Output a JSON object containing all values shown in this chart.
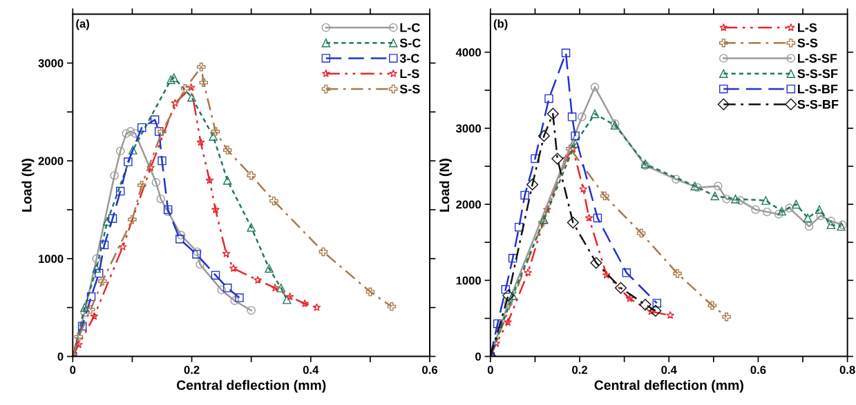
{
  "chart_data": [
    {
      "type": "line",
      "xlabel": "Central deflection (mm)",
      "ylabel": "Load (N)",
      "annotations": [
        "(a)"
      ],
      "xlim": [
        0,
        0.6
      ],
      "ylim": [
        0,
        3500
      ],
      "xticks": [
        0,
        {
          "value": 0.1,
          "label": null
        },
        0.2,
        {
          "value": 0.3,
          "label": null
        },
        0.4,
        {
          "value": 0.5,
          "label": null
        },
        0.6
      ],
      "yticks": [
        0,
        {
          "value": 500,
          "label": null
        },
        1000,
        {
          "value": 1500,
          "label": null
        },
        2000,
        {
          "value": 2500,
          "label": null
        },
        3000
      ],
      "grid": false,
      "legend": "top right",
      "series": [
        {
          "name": "L-C",
          "color": "#9a9a9a",
          "marker": "circle",
          "line_style": "solid",
          "x": [
            0,
            0.02,
            0.04,
            0.07,
            0.08,
            0.09,
            0.097,
            0.105,
            0.14,
            0.148,
            0.16,
            0.182,
            0.209,
            0.214,
            0.25,
            0.272,
            0.3
          ],
          "values": [
            0,
            450,
            1000,
            1850,
            2100,
            2280,
            2300,
            2280,
            1780,
            1610,
            1480,
            1240,
            1070,
            940,
            680,
            570,
            470
          ]
        },
        {
          "name": "S-C",
          "color": "#1e7a5a",
          "marker": "triangle",
          "line_style": "dotted",
          "x": [
            0,
            0.02,
            0.04,
            0.058,
            0.101,
            0.165,
            0.17,
            0.2,
            0.236,
            0.26,
            0.3,
            0.33,
            0.35,
            0.36
          ],
          "values": [
            0,
            500,
            900,
            1380,
            2110,
            2830,
            2850,
            2650,
            2250,
            1800,
            1320,
            900,
            700,
            580
          ]
        },
        {
          "name": "3-C",
          "color": "#2233cc",
          "marker": "square",
          "line_style": "dashed",
          "x": [
            0,
            0.016,
            0.031,
            0.044,
            0.053,
            0.067,
            0.08,
            0.093,
            0.116,
            0.138,
            0.145,
            0.15,
            0.16,
            0.18,
            0.208,
            0.24,
            0.26,
            0.28
          ],
          "values": [
            0,
            310,
            610,
            850,
            1140,
            1410,
            1690,
            1990,
            2340,
            2420,
            2300,
            2000,
            1500,
            1200,
            1045,
            830,
            700,
            600
          ]
        },
        {
          "name": "L-S",
          "color": "#e8262b",
          "marker": "star",
          "line_style": "dashdotdot",
          "x": [
            0,
            0.01,
            0.036,
            0.084,
            0.131,
            0.172,
            0.199,
            0.215,
            0.23,
            0.24,
            0.258,
            0.27,
            0.311,
            0.34,
            0.365,
            0.39,
            0.41
          ],
          "values": [
            0,
            120,
            410,
            1120,
            1930,
            2590,
            2750,
            2190,
            1800,
            1500,
            1050,
            900,
            780,
            700,
            610,
            540,
            500
          ]
        },
        {
          "name": "S-S",
          "color": "#a87a4a",
          "marker": "cross",
          "line_style": "dashdot",
          "x": [
            0,
            0.01,
            0.03,
            0.05,
            0.1,
            0.116,
            0.15,
            0.189,
            0.216,
            0.22,
            0.24,
            0.26,
            0.3,
            0.338,
            0.421,
            0.5,
            0.536
          ],
          "values": [
            0,
            200,
            480,
            770,
            1400,
            1750,
            2300,
            2740,
            2960,
            2800,
            2300,
            2110,
            1850,
            1590,
            1070,
            660,
            510
          ]
        }
      ]
    },
    {
      "type": "line",
      "xlabel": "Central deflection (mm)",
      "ylabel": "Load (N)",
      "annotations": [
        "(b)"
      ],
      "xlim": [
        0,
        0.8
      ],
      "ylim": [
        0,
        4500
      ],
      "xticks": [
        0,
        {
          "value": 0.1,
          "label": null
        },
        0.2,
        {
          "value": 0.3,
          "label": null
        },
        0.4,
        {
          "value": 0.5,
          "label": null
        },
        0.6,
        {
          "value": 0.7,
          "label": null
        },
        0.8
      ],
      "yticks": [
        0,
        {
          "value": 500,
          "label": null
        },
        1000,
        {
          "value": 1500,
          "label": null
        },
        2000,
        {
          "value": 2500,
          "label": null
        },
        3000,
        {
          "value": 3500,
          "label": null
        },
        4000
      ],
      "grid": false,
      "legend": "top right",
      "series": [
        {
          "name": "L-S",
          "color": "#e8262b",
          "marker": "star",
          "line_style": "dashdotdot",
          "x": [
            0,
            0.013,
            0.039,
            0.084,
            0.127,
            0.169,
            0.185,
            0.208,
            0.221,
            0.26,
            0.312,
            0.36,
            0.403
          ],
          "values": [
            0,
            170,
            450,
            1100,
            1930,
            2600,
            2730,
            2200,
            1820,
            1070,
            760,
            590,
            540
          ]
        },
        {
          "name": "S-S",
          "color": "#a87a4a",
          "marker": "cross",
          "line_style": "dashdot",
          "x": [
            0,
            0.117,
            0.179,
            0.256,
            0.338,
            0.419,
            0.497,
            0.529
          ],
          "values": [
            0,
            1760,
            2730,
            2110,
            1620,
            1090,
            670,
            520
          ]
        },
        {
          "name": "L-S-SF",
          "color": "#9a9a9a",
          "marker": "circle",
          "line_style": "solid",
          "x": [
            0,
            0.04,
            0.205,
            0.234,
            0.279,
            0.347,
            0.416,
            0.464,
            0.51,
            0.529,
            0.56,
            0.594,
            0.62,
            0.646,
            0.67,
            0.714,
            0.74,
            0.763,
            0.789
          ],
          "values": [
            0,
            700,
            3150,
            3540,
            3060,
            2510,
            2330,
            2220,
            2240,
            2070,
            2050,
            1930,
            1900,
            1870,
            1950,
            1710,
            1850,
            1780,
            1730
          ]
        },
        {
          "name": "S-S-SF",
          "color": "#1e7a5a",
          "marker": "triangle",
          "line_style": "dotted",
          "x": [
            0,
            0.05,
            0.12,
            0.19,
            0.234,
            0.279,
            0.347,
            0.458,
            0.503,
            0.549,
            0.617,
            0.653,
            0.685,
            0.711,
            0.737,
            0.763,
            0.786
          ],
          "values": [
            0,
            800,
            1800,
            2800,
            3190,
            3040,
            2530,
            2240,
            2110,
            2070,
            2050,
            1910,
            2000,
            1820,
            1930,
            1730,
            1710
          ]
        },
        {
          "name": "L-S-BF",
          "color": "#2233cc",
          "marker": "square",
          "line_style": "dashed",
          "x": [
            0,
            0.016,
            0.034,
            0.05,
            0.064,
            0.077,
            0.1,
            0.131,
            0.169,
            0.183,
            0.19,
            0.24,
            0.305,
            0.373
          ],
          "values": [
            0,
            430,
            880,
            1290,
            1700,
            2120,
            2600,
            3390,
            3990,
            3150,
            2900,
            1820,
            1100,
            700
          ]
        },
        {
          "name": "S-S-BF",
          "color": "#111111",
          "marker": "diamond",
          "line_style": "dashdot",
          "x": [
            0,
            0.04,
            0.094,
            0.12,
            0.14,
            0.15,
            0.185,
            0.237,
            0.292,
            0.347,
            0.37
          ],
          "values": [
            0,
            800,
            2260,
            2900,
            3190,
            2600,
            1760,
            1230,
            900,
            680,
            600
          ]
        }
      ]
    }
  ]
}
